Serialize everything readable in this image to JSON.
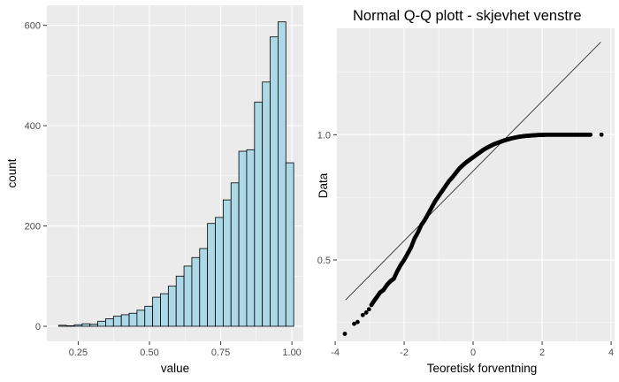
{
  "chart_data": [
    {
      "type": "bar",
      "subtype": "histogram",
      "title": "",
      "xlabel": "value",
      "ylabel": "count",
      "xlim": [
        0.14,
        1.04
      ],
      "ylim": [
        -30,
        640
      ],
      "bin_width": 0.0275,
      "bins": [
        {
          "x": 0.195,
          "count": 2
        },
        {
          "x": 0.2225,
          "count": 1
        },
        {
          "x": 0.25,
          "count": 3
        },
        {
          "x": 0.2775,
          "count": 5
        },
        {
          "x": 0.305,
          "count": 4
        },
        {
          "x": 0.3325,
          "count": 10
        },
        {
          "x": 0.36,
          "count": 15
        },
        {
          "x": 0.3875,
          "count": 20
        },
        {
          "x": 0.415,
          "count": 23
        },
        {
          "x": 0.4425,
          "count": 26
        },
        {
          "x": 0.47,
          "count": 32
        },
        {
          "x": 0.4975,
          "count": 40
        },
        {
          "x": 0.525,
          "count": 58
        },
        {
          "x": 0.5525,
          "count": 65
        },
        {
          "x": 0.58,
          "count": 80
        },
        {
          "x": 0.6075,
          "count": 100
        },
        {
          "x": 0.635,
          "count": 120
        },
        {
          "x": 0.6625,
          "count": 137
        },
        {
          "x": 0.69,
          "count": 155
        },
        {
          "x": 0.7175,
          "count": 205
        },
        {
          "x": 0.745,
          "count": 217
        },
        {
          "x": 0.7725,
          "count": 252
        },
        {
          "x": 0.8,
          "count": 286
        },
        {
          "x": 0.8275,
          "count": 349
        },
        {
          "x": 0.855,
          "count": 352
        },
        {
          "x": 0.8825,
          "count": 447
        },
        {
          "x": 0.91,
          "count": 487
        },
        {
          "x": 0.9375,
          "count": 577
        },
        {
          "x": 0.965,
          "count": 607
        },
        {
          "x": 0.9925,
          "count": 326
        }
      ],
      "x_ticks": [
        0.25,
        0.5,
        0.75,
        1.0
      ],
      "x_tick_labels": [
        "0.25",
        "0.50",
        "0.75",
        "1.00"
      ],
      "y_ticks": [
        0,
        200,
        400,
        600
      ],
      "y_tick_labels": [
        "0",
        "200",
        "400",
        "600"
      ],
      "fill_color": "#add8e6",
      "outline_color": "#000000",
      "panel_color": "#ebebeb",
      "grid_color": "#ffffff",
      "grid": true
    },
    {
      "type": "scatter",
      "subtype": "qq-plot",
      "title": "Normal Q-Q plott - skjevhet venstre",
      "xlabel": "Teoretisk forventning",
      "ylabel": "Data",
      "xlim": [
        -3.95,
        4.1
      ],
      "ylim": [
        0.175,
        1.425
      ],
      "x_ticks": [
        -4,
        -2,
        0,
        2,
        4
      ],
      "x_tick_labels": [
        "-4",
        "-2",
        "0",
        "2",
        "4"
      ],
      "y_ticks": [
        0.5,
        1.0
      ],
      "y_tick_labels": [
        "0.5",
        "1.0"
      ],
      "reference_line": {
        "x": [
          -3.7,
          3.7
        ],
        "y": [
          0.34,
          1.37
        ]
      },
      "points": {
        "x": [
          -3.72,
          -3.45,
          -3.35,
          -3.2,
          -3.1,
          -3.02,
          -2.95,
          -2.88,
          -2.8,
          -2.7,
          -2.6,
          -2.5,
          -2.4,
          -2.3,
          -2.2,
          -2.1,
          -2.0,
          -1.9,
          -1.8,
          -1.7,
          -1.6,
          -1.5,
          -1.4,
          -1.3,
          -1.2,
          -1.1,
          -1.0,
          -0.9,
          -0.8,
          -0.7,
          -0.6,
          -0.5,
          -0.4,
          -0.3,
          -0.2,
          -0.1,
          0.0,
          0.1,
          0.2,
          0.3,
          0.4,
          0.5,
          0.6,
          0.7,
          0.8,
          0.9,
          1.0,
          1.1,
          1.2,
          1.3,
          1.4,
          1.5,
          1.6,
          1.7,
          1.8,
          1.9,
          2.0,
          2.1,
          2.2,
          2.3,
          2.4,
          2.5,
          2.6,
          2.7,
          2.8,
          2.9,
          3.0,
          3.1,
          3.2,
          3.3,
          3.4,
          3.72
        ],
        "y": [
          0.205,
          0.245,
          0.252,
          0.28,
          0.29,
          0.303,
          0.32,
          0.335,
          0.35,
          0.37,
          0.38,
          0.4,
          0.415,
          0.425,
          0.455,
          0.48,
          0.5,
          0.525,
          0.55,
          0.585,
          0.61,
          0.64,
          0.66,
          0.685,
          0.71,
          0.735,
          0.755,
          0.775,
          0.795,
          0.815,
          0.83,
          0.848,
          0.865,
          0.878,
          0.89,
          0.9,
          0.91,
          0.92,
          0.93,
          0.94,
          0.948,
          0.955,
          0.962,
          0.967,
          0.972,
          0.977,
          0.981,
          0.985,
          0.988,
          0.991,
          0.993,
          0.995,
          0.996,
          0.997,
          0.998,
          0.999,
          0.999,
          1.0,
          1.0,
          1.0,
          1.0,
          1.0,
          1.0,
          1.0,
          1.0,
          1.0,
          1.0,
          1.0,
          1.0,
          1.0,
          1.0,
          1.0
        ]
      },
      "point_color": "#000000",
      "line_color": "#000000",
      "panel_color": "#ebebeb",
      "grid_color": "#ffffff",
      "grid": true
    }
  ]
}
